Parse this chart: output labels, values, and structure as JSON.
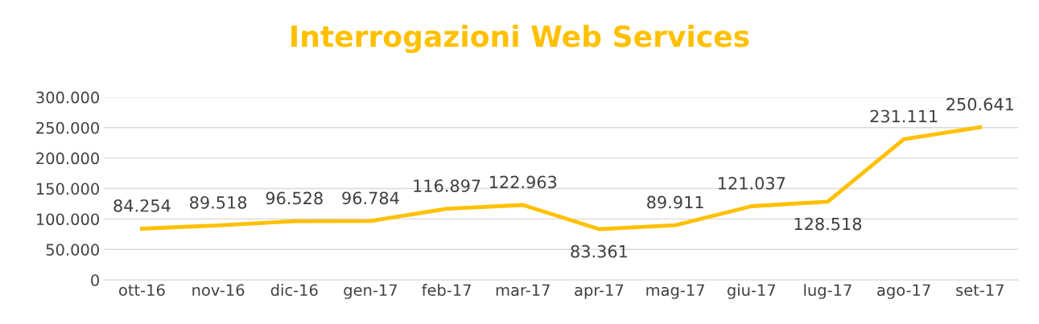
{
  "chart_data": {
    "type": "line",
    "title": "Interrogazioni Web Services",
    "categories": [
      "ott-16",
      "nov-16",
      "dic-16",
      "gen-17",
      "feb-17",
      "mar-17",
      "apr-17",
      "mag-17",
      "giu-17",
      "lug-17",
      "ago-17",
      "set-17"
    ],
    "series": [
      {
        "color": "#ffc000",
        "values": [
          84254,
          89518,
          96528,
          96784,
          116897,
          122963,
          83361,
          89911,
          121037,
          128518,
          231111,
          250641
        ],
        "value_labels": [
          "84.254",
          "89.518",
          "96.528",
          "96.784",
          "116.897",
          "122.963",
          "83.361",
          "89.911",
          "121.037",
          "128.518",
          "231.111",
          "250.641"
        ]
      }
    ],
    "ylim": [
      0,
      300000
    ],
    "yticks": [
      {
        "value": 0,
        "label": "0"
      },
      {
        "value": 50000,
        "label": "50.000"
      },
      {
        "value": 100000,
        "label": "100.000"
      },
      {
        "value": 150000,
        "label": "150.000"
      },
      {
        "value": 200000,
        "label": "200.000"
      },
      {
        "value": 250000,
        "label": "250.000"
      },
      {
        "value": 300000,
        "label": "300.000"
      }
    ],
    "grid": "y",
    "marker": "none",
    "line_style": "solid"
  }
}
